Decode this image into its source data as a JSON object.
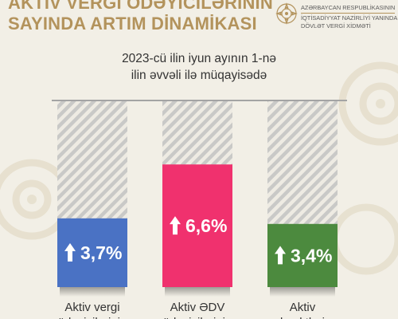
{
  "header": {
    "title_lines": [
      "AKTİV VERGİ ÖDƏYİCİLƏRİNİN",
      "SAYINDA ARTIM DİNAMİKASI"
    ]
  },
  "ministry": {
    "lines": [
      "AZƏRBAYCAN RESPUBLİKASININ",
      "İQTİSADİYYAT NAZİRLİYİ YANINDA",
      "DÖVLƏT VERGİ XİDMƏTİ"
    ]
  },
  "chart_data": {
    "type": "bar",
    "subtitle_lines": [
      "2023-cü ilin iyun ayının 1-nə",
      "ilin əvvəli ilə müqayisədə"
    ],
    "categories": [
      [
        "Aktiv vergi",
        "ödəyicilərinin"
      ],
      [
        "Aktiv ƏDV",
        "ödəyicilərinin"
      ],
      [
        "Aktiv",
        "obyektlərin"
      ]
    ],
    "values": [
      3.7,
      6.6,
      3.4
    ],
    "value_labels": [
      "3,7%",
      "6,6%",
      "3,4%"
    ],
    "colors": [
      "#4a72c4",
      "#f0316e",
      "#4c8a3e"
    ],
    "arrow_icon": "arrow-up-icon",
    "ylim": [
      0,
      10
    ],
    "grid": false,
    "legend": "none"
  }
}
